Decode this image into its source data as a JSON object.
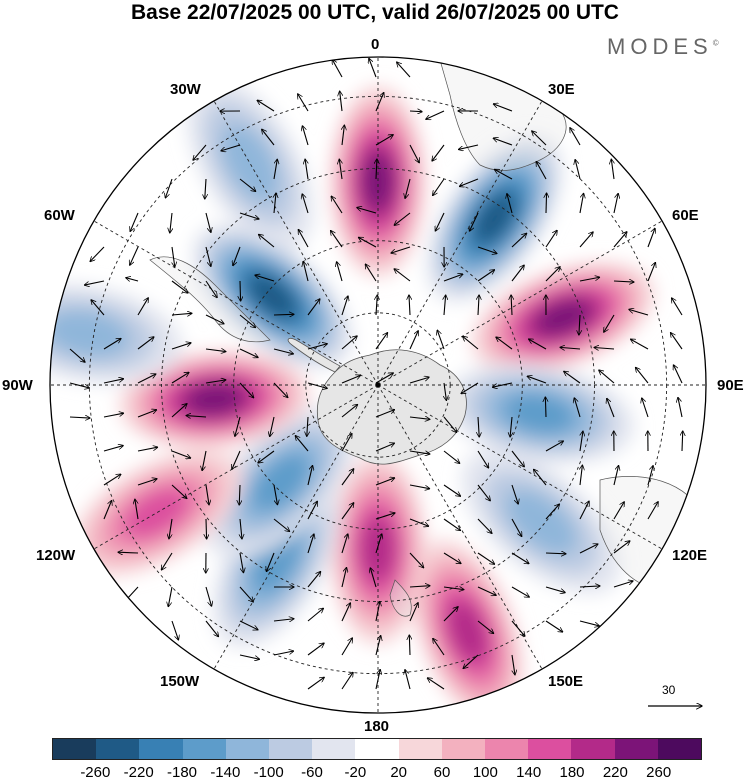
{
  "title": "Base 22/07/2025 00 UTC, valid 26/07/2025 00 UTC",
  "brand": "MODES",
  "brand_mark": "©",
  "longitude_labels": {
    "top": "0",
    "right": "90E",
    "bottom": "180",
    "left": "90W",
    "ne": "30E",
    "ene": "60E",
    "ese": "120E",
    "se": "150E",
    "sw": "150W",
    "wsw": "120W",
    "wnw": "60W",
    "nw": "30W"
  },
  "reference_vector": {
    "value": "30"
  },
  "colorbar": {
    "colors": [
      "#193c5c",
      "#1f5a86",
      "#3880b4",
      "#5d9cca",
      "#8fb6da",
      "#bccbe2",
      "#e2e5ef",
      "#ffffff",
      "#f7d7da",
      "#f3b1bf",
      "#ec85ad",
      "#dc4f9f",
      "#b32a89",
      "#7c1478",
      "#4d0a5e"
    ],
    "ticks": [
      "-260",
      "-220",
      "-180",
      "-140",
      "-100",
      "-60",
      "-20",
      "20",
      "60",
      "100",
      "140",
      "180",
      "220",
      "260"
    ]
  },
  "map_data": {
    "projection": "south polar stereographic",
    "pole_center": "South Pole",
    "anomaly_centers": [
      {
        "name": "positive anomaly south of Africa",
        "lon": 0,
        "lat_ring": 0.62,
        "sign": "positive",
        "peak": 260
      },
      {
        "name": "negative anomaly SW Indian Ocean",
        "lon": 35,
        "lat_ring": 0.62,
        "sign": "negative",
        "peak": -260
      },
      {
        "name": "positive anomaly S Indian Ocean",
        "lon": 70,
        "lat_ring": 0.6,
        "sign": "positive",
        "peak": 260
      },
      {
        "name": "negative anomaly near 100E",
        "lon": 100,
        "lat_ring": 0.5,
        "sign": "negative",
        "peak": -180
      },
      {
        "name": "negative anomaly south of Australia",
        "lon": 130,
        "lat_ring": 0.65,
        "sign": "negative",
        "peak": -140
      },
      {
        "name": "positive anomaly near 160E",
        "lon": 160,
        "lat_ring": 0.8,
        "sign": "positive",
        "peak": 220
      },
      {
        "name": "positive anomaly near 180",
        "lon": 180,
        "lat_ring": 0.5,
        "sign": "positive",
        "peak": 220
      },
      {
        "name": "negative anomaly near 150W",
        "lon": 210,
        "lat_ring": 0.62,
        "sign": "negative",
        "peak": -180
      },
      {
        "name": "negative anomaly near 140W",
        "lon": 225,
        "lat_ring": 0.42,
        "sign": "negative",
        "peak": -180
      },
      {
        "name": "positive anomaly near 120W",
        "lon": 240,
        "lat_ring": 0.78,
        "sign": "positive",
        "peak": 180
      },
      {
        "name": "positive anomaly west of Drake Passage",
        "lon": 265,
        "lat_ring": 0.5,
        "sign": "positive",
        "peak": 260
      },
      {
        "name": "negative anomaly near 90W",
        "lon": 280,
        "lat_ring": 0.9,
        "sign": "negative",
        "peak": -140
      },
      {
        "name": "negative anomaly S Atlantic",
        "lon": 310,
        "lat_ring": 0.42,
        "sign": "negative",
        "peak": -260
      },
      {
        "name": "negative anomaly S Atlantic north",
        "lon": 330,
        "lat_ring": 0.78,
        "sign": "negative",
        "peak": -140
      }
    ]
  }
}
